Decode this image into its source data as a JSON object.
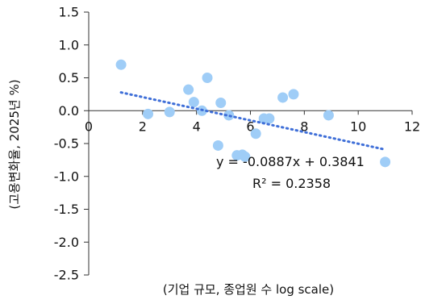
{
  "chart_data": {
    "type": "scatter",
    "xlabel": "(기업 규모, 종업원 수 log scale)",
    "ylabel": "(고용변화율, 2025년 %)",
    "xlim": [
      0,
      12
    ],
    "ylim": [
      -2.5,
      1.5
    ],
    "x_ticks": [
      0,
      2,
      4,
      6,
      8,
      10,
      12
    ],
    "y_ticks": [
      1.5,
      1.0,
      0.5,
      0.0,
      -0.5,
      -1.0,
      -1.5,
      -2.0,
      -2.5
    ],
    "x_tick_labels": [
      "0",
      "2",
      "4",
      "6",
      "8",
      "10",
      "12"
    ],
    "y_tick_labels": [
      "1.5",
      "1.0",
      "0.5",
      "0.0",
      "-0.5",
      "-1.0",
      "-1.5",
      "-2.0",
      "-2.5"
    ],
    "grid": false,
    "point_color": "#9fcdf7",
    "trend_color": "#3f6fd8",
    "points": [
      {
        "x": 1.2,
        "y": 0.7
      },
      {
        "x": 2.2,
        "y": -0.05
      },
      {
        "x": 3.0,
        "y": -0.02
      },
      {
        "x": 3.7,
        "y": 0.32
      },
      {
        "x": 3.9,
        "y": 0.13
      },
      {
        "x": 4.2,
        "y": 0.0
      },
      {
        "x": 4.4,
        "y": 0.5
      },
      {
        "x": 4.8,
        "y": -0.53
      },
      {
        "x": 4.9,
        "y": 0.12
      },
      {
        "x": 5.2,
        "y": -0.07
      },
      {
        "x": 5.5,
        "y": -0.68
      },
      {
        "x": 5.7,
        "y": -0.67
      },
      {
        "x": 5.8,
        "y": -0.7
      },
      {
        "x": 6.2,
        "y": -0.35
      },
      {
        "x": 6.5,
        "y": -0.12
      },
      {
        "x": 6.7,
        "y": -0.12
      },
      {
        "x": 7.2,
        "y": 0.2
      },
      {
        "x": 7.6,
        "y": 0.25
      },
      {
        "x": 8.9,
        "y": -0.07
      },
      {
        "x": 11.0,
        "y": -0.78
      }
    ],
    "trendline": {
      "slope": -0.0887,
      "intercept": 0.3841,
      "x_range": [
        1.2,
        11.0
      ],
      "equation": "y = -0.0887x + 0.3841",
      "r_squared": "R² = 0.2358"
    }
  }
}
